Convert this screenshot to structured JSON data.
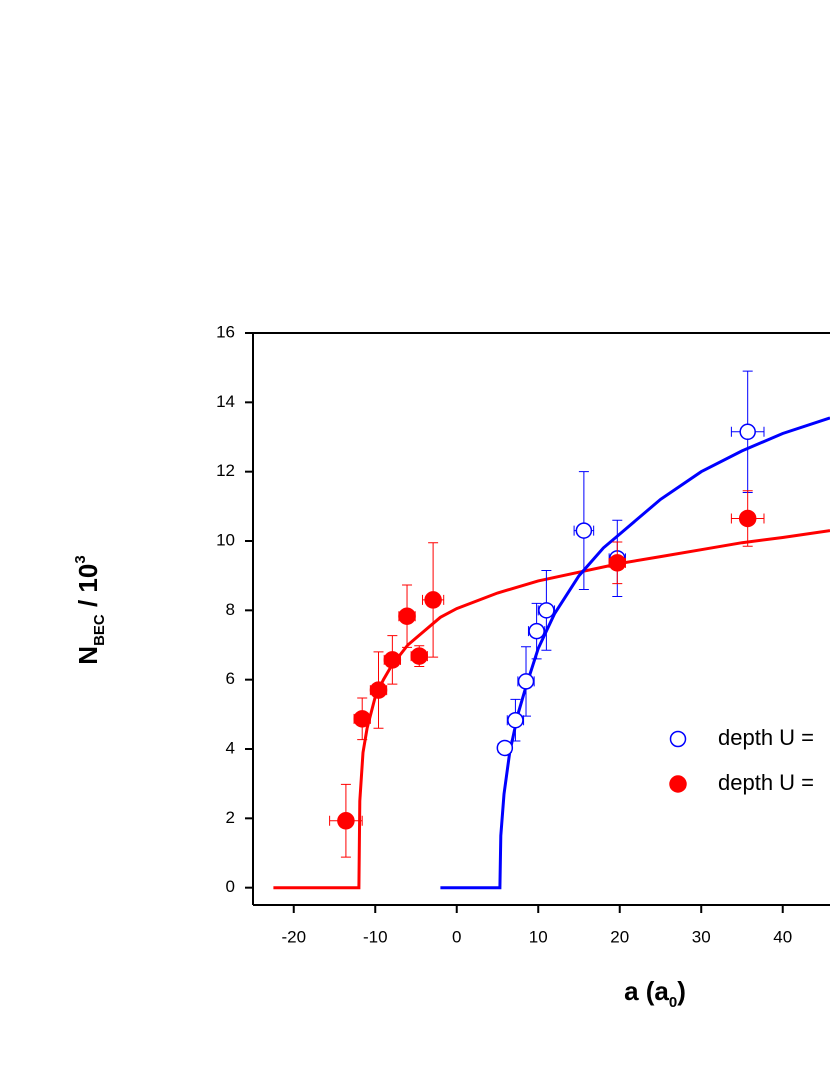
{
  "chart_data": {
    "type": "scatter",
    "x_label": {
      "text": "a (a",
      "sub": "0",
      "rest": ")"
    },
    "y_label": {
      "text": "N",
      "sub": "BEC",
      "rest": " / 10",
      "sup": "3"
    },
    "xlim": [
      -25,
      45.8
    ],
    "ylim": [
      -0.5,
      16
    ],
    "xticks": [
      -20,
      -10,
      0,
      10,
      20,
      30,
      40
    ],
    "yticks": [
      0,
      2,
      4,
      6,
      8,
      10,
      12,
      14,
      16
    ],
    "series": [
      {
        "name": "depth U =",
        "color": "#0000ff",
        "marker": "open",
        "x": [
          5.9,
          7.2,
          8.5,
          9.8,
          11.0,
          15.6,
          19.7,
          35.7
        ],
        "values": [
          4.03,
          4.83,
          5.95,
          7.4,
          8.0,
          10.3,
          9.5,
          13.15
        ],
        "xerr": [
          0.8,
          1.0,
          1.0,
          1.0,
          1.0,
          1.2,
          1.0,
          2.0
        ],
        "yerr": [
          0.1,
          0.6,
          1.0,
          0.8,
          1.15,
          1.7,
          1.1,
          1.75
        ]
      },
      {
        "name": "depth U =",
        "color": "#ff0000",
        "marker": "filled",
        "x": [
          -13.6,
          -11.6,
          -9.6,
          -7.9,
          -6.1,
          -4.6,
          -2.9,
          19.7,
          35.7
        ],
        "values": [
          1.93,
          4.87,
          5.7,
          6.57,
          7.83,
          6.68,
          8.3,
          9.37,
          10.65
        ],
        "xerr": [
          2.0,
          1.0,
          1.0,
          1.0,
          1.0,
          1.0,
          1.3,
          1.0,
          2.0
        ],
        "yerr": [
          1.05,
          0.6,
          1.1,
          0.7,
          0.9,
          0.3,
          1.65,
          0.6,
          0.8
        ]
      }
    ],
    "fits": [
      {
        "color": "#ff0000",
        "x": [
          -22.5,
          -12,
          -11.9,
          -11.5,
          -11,
          -10,
          -9,
          -8,
          -6,
          -4,
          -2,
          0,
          5,
          10,
          15,
          20,
          25,
          30,
          35,
          40,
          45.8
        ],
        "values": [
          0,
          0,
          2.5,
          3.9,
          4.6,
          5.5,
          6.0,
          6.4,
          7.0,
          7.4,
          7.8,
          8.05,
          8.5,
          8.85,
          9.1,
          9.35,
          9.55,
          9.75,
          9.95,
          10.1,
          10.3
        ]
      },
      {
        "color": "#0000ff",
        "x": [
          -2,
          5.3,
          5.4,
          5.8,
          6.5,
          7.5,
          8.5,
          10,
          12,
          15,
          18,
          20,
          25,
          30,
          35,
          40,
          45.8
        ],
        "values": [
          0,
          0,
          1.5,
          2.7,
          3.9,
          5.0,
          5.8,
          6.9,
          7.9,
          9.0,
          9.8,
          10.2,
          11.2,
          12.0,
          12.6,
          13.1,
          13.55
        ]
      }
    ]
  }
}
